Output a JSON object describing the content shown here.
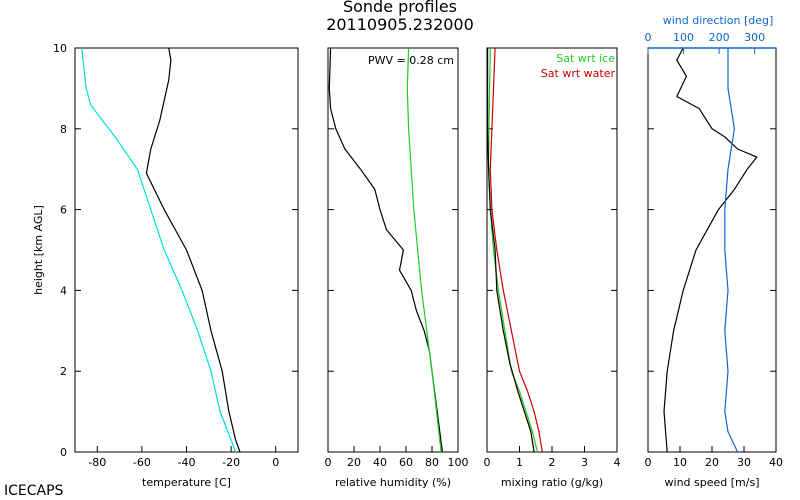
{
  "title_line1": "Sonde profiles",
  "title_line2": "20110905.232000",
  "brand": "ICECAPS",
  "ylabel": "height [km AGL]",
  "chart_data": [
    {
      "type": "line",
      "id": "temperature",
      "xlabel": "temperature [C]",
      "xlim": [
        -90,
        10
      ],
      "xticks": [
        -80,
        -60,
        -40,
        -20,
        0
      ],
      "ylim": [
        0,
        10
      ],
      "yticks": [
        0,
        2,
        4,
        6,
        8,
        10
      ],
      "series": [
        {
          "color": "#000000",
          "points": [
            [
              -16,
              0
            ],
            [
              -18,
              0.3
            ],
            [
              -21,
              1
            ],
            [
              -24,
              2
            ],
            [
              -29,
              3
            ],
            [
              -33,
              4
            ],
            [
              -40,
              5
            ],
            [
              -50,
              6
            ],
            [
              -58,
              6.9
            ],
            [
              -56,
              7.5
            ],
            [
              -52,
              8.2
            ],
            [
              -48,
              9.2
            ],
            [
              -47,
              9.7
            ],
            [
              -48,
              10
            ]
          ]
        },
        {
          "color": "#00dddd",
          "points": [
            [
              -18,
              0
            ],
            [
              -20,
              0.3
            ],
            [
              -25,
              1
            ],
            [
              -29,
              2
            ],
            [
              -35,
              3
            ],
            [
              -42,
              4
            ],
            [
              -50,
              5
            ],
            [
              -56,
              6
            ],
            [
              -62,
              7
            ],
            [
              -72,
              7.8
            ],
            [
              -79,
              8.3
            ],
            [
              -83,
              8.6
            ],
            [
              -85,
              9
            ],
            [
              -86,
              9.5
            ],
            [
              -87,
              10
            ]
          ]
        }
      ]
    },
    {
      "type": "line",
      "id": "relative-humidity",
      "xlabel": "relative humidity (%)",
      "xlim": [
        0,
        100
      ],
      "xticks": [
        0,
        20,
        40,
        60,
        80,
        100
      ],
      "ylim": [
        0,
        10
      ],
      "annotation": "PWV = 0.28 cm",
      "series": [
        {
          "color": "#000000",
          "points": [
            [
              88,
              0
            ],
            [
              86,
              0.5
            ],
            [
              84,
              1
            ],
            [
              82,
              1.5
            ],
            [
              80,
              2
            ],
            [
              78,
              2.5
            ],
            [
              74,
              3
            ],
            [
              68,
              3.5
            ],
            [
              64,
              4
            ],
            [
              55,
              4.5
            ],
            [
              58,
              5
            ],
            [
              45,
              5.5
            ],
            [
              40,
              6
            ],
            [
              36,
              6.5
            ],
            [
              25,
              7
            ],
            [
              13,
              7.5
            ],
            [
              6,
              8
            ],
            [
              2,
              8.5
            ],
            [
              1,
              9
            ],
            [
              2,
              10
            ]
          ]
        },
        {
          "color": "#22cc22",
          "points": [
            [
              87,
              0
            ],
            [
              80,
              2
            ],
            [
              72,
              4
            ],
            [
              66,
              6
            ],
            [
              62,
              8
            ],
            [
              61,
              9
            ],
            [
              62,
              10
            ]
          ]
        }
      ]
    },
    {
      "type": "line",
      "id": "mixing-ratio",
      "xlabel": "mixing ratio (g/kg)",
      "xlim": [
        0,
        4
      ],
      "xticks": [
        0,
        1,
        2,
        3,
        4
      ],
      "ylim": [
        0,
        10
      ],
      "legend": [
        "Sat wrt ice",
        "Sat wrt water"
      ],
      "series": [
        {
          "name": "Sat wrt ice",
          "color": "#22cc22",
          "points": [
            [
              1.55,
              0
            ],
            [
              1.4,
              0.5
            ],
            [
              1.2,
              1
            ],
            [
              1.0,
              1.5
            ],
            [
              0.75,
              2
            ],
            [
              0.55,
              3
            ],
            [
              0.35,
              4
            ],
            [
              0.2,
              5
            ],
            [
              0.1,
              6
            ],
            [
              0.05,
              7
            ],
            [
              0.06,
              8
            ],
            [
              0.08,
              9
            ],
            [
              0.1,
              10
            ]
          ]
        },
        {
          "name": "Sat wrt water",
          "color": "#cc0000",
          "points": [
            [
              1.7,
              0
            ],
            [
              1.6,
              0.5
            ],
            [
              1.45,
              1
            ],
            [
              1.25,
              1.5
            ],
            [
              1.0,
              2
            ],
            [
              0.75,
              3
            ],
            [
              0.5,
              4
            ],
            [
              0.3,
              5
            ],
            [
              0.15,
              6
            ],
            [
              0.1,
              7
            ],
            [
              0.15,
              8
            ],
            [
              0.2,
              9
            ],
            [
              0.25,
              10
            ]
          ]
        },
        {
          "color": "#eeee00",
          "points": [
            [
              1.45,
              0
            ],
            [
              1.35,
              0.5
            ],
            [
              1.15,
              1
            ],
            [
              0.95,
              1.5
            ],
            [
              0.7,
              2.2
            ],
            [
              0.5,
              3
            ],
            [
              0.3,
              4
            ]
          ]
        },
        {
          "color": "#000000",
          "points": [
            [
              1.45,
              0
            ],
            [
              1.35,
              0.5
            ],
            [
              1.15,
              1
            ],
            [
              0.95,
              1.5
            ],
            [
              0.7,
              2.2
            ],
            [
              0.5,
              3
            ],
            [
              0.3,
              4
            ],
            [
              0.25,
              5
            ],
            [
              0.1,
              6
            ],
            [
              0.05,
              7
            ],
            [
              0.02,
              8
            ],
            [
              0.02,
              10
            ]
          ]
        }
      ]
    },
    {
      "type": "line",
      "id": "wind",
      "xlabel": "wind speed [m/s]",
      "xlim": [
        0,
        40
      ],
      "xticks": [
        0,
        10,
        20,
        30,
        40
      ],
      "ylim": [
        0,
        10
      ],
      "top_axis": {
        "label": "wind direction [deg]",
        "lim": [
          0,
          360
        ],
        "ticks": [
          0,
          100,
          200,
          300
        ],
        "color": "#1166cc"
      },
      "series": [
        {
          "color": "#000000",
          "points": [
            [
              6,
              0
            ],
            [
              5,
              1
            ],
            [
              6,
              2
            ],
            [
              8,
              3
            ],
            [
              11,
              4
            ],
            [
              15,
              5
            ],
            [
              22,
              6
            ],
            [
              27,
              6.5
            ],
            [
              31,
              7
            ],
            [
              34,
              7.3
            ],
            [
              28,
              7.5
            ],
            [
              24,
              7.8
            ],
            [
              20,
              8
            ],
            [
              16,
              8.5
            ],
            [
              9,
              8.8
            ],
            [
              12,
              9.3
            ],
            [
              9,
              9.7
            ],
            [
              11,
              10
            ]
          ]
        },
        {
          "color": "#1166cc",
          "points": [
            [
              28,
              0
            ],
            [
              25,
              0.5
            ],
            [
              24,
              1
            ],
            [
              25,
              2
            ],
            [
              24,
              3
            ],
            [
              25,
              4
            ],
            [
              24,
              5
            ],
            [
              24,
              6
            ],
            [
              25,
              7
            ],
            [
              26,
              7.5
            ],
            [
              27,
              8
            ],
            [
              25,
              9
            ],
            [
              25,
              10
            ]
          ]
        }
      ]
    }
  ]
}
